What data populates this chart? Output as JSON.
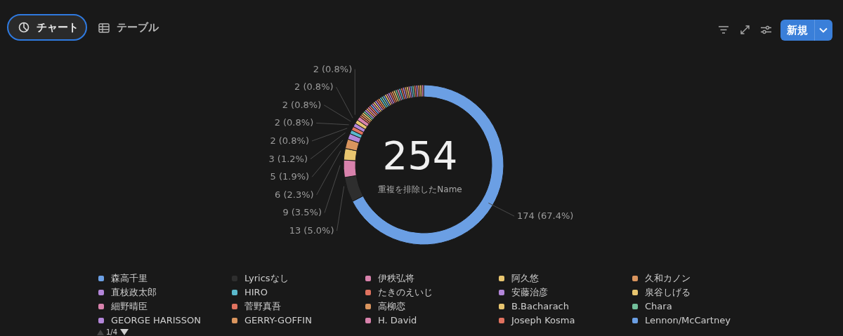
{
  "chart_data": {
    "type": "donut",
    "categories": [
      "森高千里",
      "Lyricsなし",
      "伊秩弘将",
      "阿久悠",
      "久和カノン",
      "直枝政太郎",
      "HIRO",
      "たきのえいじ",
      "安藤治彦",
      "泉谷しげる",
      "細野晴臣",
      "菅野真吾",
      "高柳恋",
      "B.Bacharach",
      "Chara",
      "GEORGE HARISSON",
      "GERRY-GOFFIN",
      "H. David",
      "Joseph Kosma",
      "Lennon/McCartney",
      null,
      null,
      null,
      null,
      null,
      null,
      null,
      null,
      null,
      null,
      null,
      null,
      null,
      null,
      null,
      null,
      null,
      null,
      null,
      null,
      null,
      null,
      null,
      null,
      null,
      null,
      null,
      null,
      null
    ],
    "values": [
      174,
      13,
      9,
      6,
      5,
      3,
      2,
      2,
      2,
      2,
      2,
      1,
      1,
      1,
      1,
      1,
      1,
      1,
      1,
      1,
      1,
      1,
      1,
      1,
      1,
      1,
      1,
      1,
      1,
      1,
      1,
      1,
      1,
      1,
      1,
      1,
      1,
      1,
      1,
      1,
      1,
      1,
      1,
      1,
      1,
      1,
      1,
      1,
      1
    ],
    "colors": [
      "#6b9fe4",
      "#2e2e2e",
      "#d882ac",
      "#e8c56f",
      "#da955e",
      "#b386d9",
      "#5ab9cc",
      "#e0725f",
      "#b386d9",
      "#e8c56f",
      "#d882ac",
      "#e0725f",
      "#da955e",
      "#e8c56f",
      "#72bf9b",
      "#b386d9",
      "#da955e",
      "#d882ac",
      "#e0725f",
      "#6b9fe4",
      "#d882ac",
      "#e8c56f",
      "#b386d9",
      "#e0725f",
      "#da955e",
      "#5ab9cc",
      "#72bf9b",
      "#6b9fe4",
      "#e8c56f",
      "#d882ac",
      "#b386d9",
      "#e0725f",
      "#da955e",
      "#e8c56f",
      "#72bf9b",
      "#d882ac",
      "#5ab9cc",
      "#e0725f",
      "#b386d9",
      "#da955e",
      "#e8c56f",
      "#d882ac",
      "#6b9fe4",
      "#72bf9b",
      "#e0725f",
      "#b386d9",
      "#da955e",
      "#e8c56f",
      "#d882ac"
    ],
    "value_labels": [
      "174 (67.4%)",
      "13 (5.0%)",
      "9 (3.5%)",
      "6 (2.3%)",
      "5 (1.9%)",
      "3 (1.2%)",
      "2 (0.8%)",
      "2 (0.8%)",
      "2 (0.8%)",
      "2 (0.8%)",
      "2 (0.8%)",
      null,
      null,
      null,
      null,
      null,
      null,
      null,
      null,
      null,
      null,
      null,
      null,
      null,
      null,
      null,
      null,
      null,
      null,
      null,
      null,
      null,
      null,
      null,
      null,
      null,
      null,
      null,
      null,
      null,
      null,
      null,
      null,
      null,
      null,
      null,
      null,
      null,
      null
    ],
    "legend": "bottom",
    "annotations": [
      "254",
      "重複を排除したName",
      "チャート",
      "テーブル",
      "新規",
      "1/4"
    ]
  }
}
